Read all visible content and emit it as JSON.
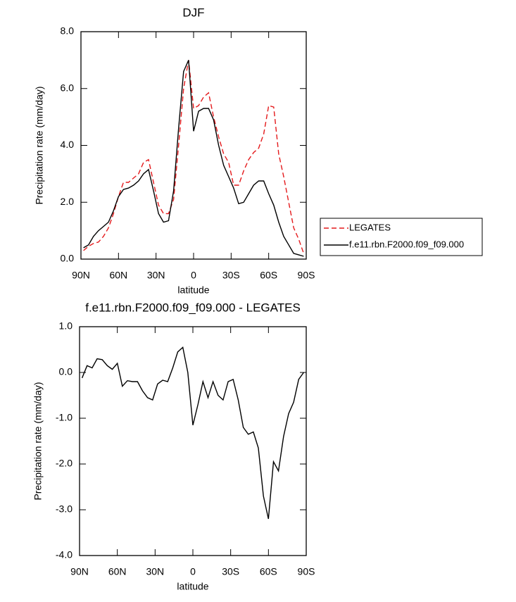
{
  "chart_data": [
    {
      "type": "line",
      "title": "DJF",
      "x_label": "latitude",
      "y_label": "Precipitation rate (mm/day)",
      "x": [
        88,
        84,
        80,
        76,
        72,
        68,
        64,
        60,
        56,
        52,
        48,
        44,
        40,
        36,
        32,
        28,
        24,
        20,
        16,
        12,
        8,
        4,
        0,
        -4,
        -8,
        -12,
        -16,
        -20,
        -24,
        -28,
        -32,
        -36,
        -40,
        -44,
        -48,
        -52,
        -56,
        -60,
        -64,
        -68,
        -72,
        -76,
        -80,
        -84,
        -88
      ],
      "series": [
        {
          "name": "LEGATES",
          "color": "#e41a1c",
          "line_style": "dashed",
          "values": [
            0.3,
            0.45,
            0.55,
            0.6,
            0.8,
            1.1,
            1.6,
            2.2,
            2.7,
            2.7,
            2.85,
            3.0,
            3.4,
            3.5,
            2.7,
            1.9,
            1.6,
            1.6,
            2.1,
            4.0,
            6.0,
            7.0,
            5.3,
            5.4,
            5.7,
            5.85,
            5.0,
            4.3,
            3.7,
            3.4,
            2.6,
            2.6,
            3.1,
            3.5,
            3.75,
            3.9,
            4.4,
            5.4,
            5.35,
            3.7,
            2.9,
            2.0,
            1.1,
            0.7,
            0.2
          ]
        },
        {
          "name": "f.e11.rbn.F2000.f09_f09.000",
          "color": "#000000",
          "line_style": "solid",
          "values": [
            0.4,
            0.5,
            0.8,
            1.0,
            1.15,
            1.3,
            1.7,
            2.2,
            2.45,
            2.5,
            2.6,
            2.75,
            3.0,
            3.15,
            2.4,
            1.6,
            1.3,
            1.35,
            2.4,
            4.6,
            6.6,
            7.0,
            4.5,
            5.2,
            5.3,
            5.3,
            4.9,
            4.0,
            3.3,
            2.9,
            2.5,
            1.95,
            2.0,
            2.3,
            2.6,
            2.75,
            2.75,
            2.3,
            1.9,
            1.3,
            0.8,
            0.5,
            0.2,
            0.15,
            0.1
          ]
        }
      ],
      "xlim": [
        90,
        -90
      ],
      "xticks": [
        {
          "value": 90,
          "label": "90N"
        },
        {
          "value": 60,
          "label": "60N"
        },
        {
          "value": 30,
          "label": "30N"
        },
        0,
        {
          "value": -30,
          "label": "30S"
        },
        {
          "value": -60,
          "label": "60S"
        },
        {
          "value": -90,
          "label": "90S"
        }
      ],
      "ylim": [
        0,
        8
      ],
      "yticks": [
        {
          "value": 0,
          "label": "0.0"
        },
        {
          "value": 2,
          "label": "2.0"
        },
        {
          "value": 4,
          "label": "4.0"
        },
        {
          "value": 6,
          "label": "6.0"
        },
        {
          "value": 8,
          "label": "8.0"
        }
      ],
      "legend": "right"
    },
    {
      "type": "line",
      "title": "f.e11.rbn.F2000.f09_f09.000 - LEGATES",
      "x_label": "latitude",
      "y_label": "Precipitation rate (mm/day)",
      "x": [
        88,
        84,
        80,
        76,
        72,
        68,
        64,
        60,
        56,
        52,
        48,
        44,
        40,
        36,
        32,
        28,
        24,
        20,
        16,
        12,
        8,
        4,
        0,
        -4,
        -8,
        -12,
        -16,
        -20,
        -24,
        -28,
        -32,
        -36,
        -40,
        -44,
        -48,
        -52,
        -56,
        -60,
        -64,
        -68,
        -72,
        -76,
        -80,
        -84,
        -88
      ],
      "values": [
        -0.12,
        0.15,
        0.1,
        0.3,
        0.28,
        0.15,
        0.07,
        0.2,
        -0.3,
        -0.18,
        -0.2,
        -0.2,
        -0.4,
        -0.55,
        -0.6,
        -0.25,
        -0.17,
        -0.2,
        0.1,
        0.45,
        0.55,
        0.0,
        -1.15,
        -0.7,
        -0.2,
        -0.55,
        -0.2,
        -0.5,
        -0.6,
        -0.2,
        -0.15,
        -0.6,
        -1.2,
        -1.35,
        -1.3,
        -1.65,
        -2.7,
        -3.2,
        -1.95,
        -2.15,
        -1.4,
        -0.9,
        -0.65,
        -0.15,
        0.0
      ],
      "color": "#000000",
      "xlim": [
        90,
        -90
      ],
      "xticks": [
        {
          "value": 90,
          "label": "90N"
        },
        {
          "value": 60,
          "label": "60N"
        },
        {
          "value": 30,
          "label": "30N"
        },
        0,
        {
          "value": -30,
          "label": "30S"
        },
        {
          "value": -60,
          "label": "60S"
        },
        {
          "value": -90,
          "label": "90S"
        }
      ],
      "ylim": [
        -4,
        1
      ],
      "yticks": [
        {
          "value": -4,
          "label": "-4.0"
        },
        {
          "value": -3,
          "label": "-3.0"
        },
        {
          "value": -2,
          "label": "-2.0"
        },
        {
          "value": -1,
          "label": "-1.0"
        },
        {
          "value": 0,
          "label": "0.0"
        },
        {
          "value": 1,
          "label": "1.0"
        }
      ]
    }
  ]
}
